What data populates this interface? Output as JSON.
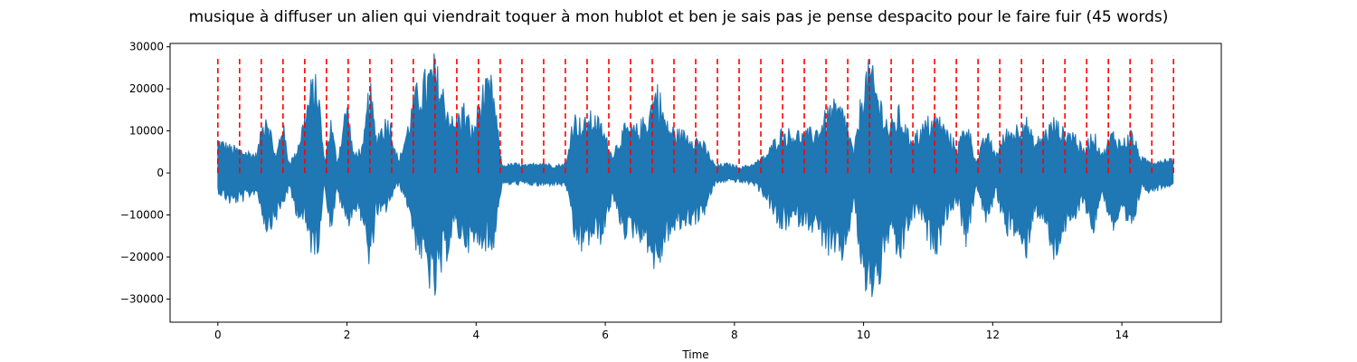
{
  "chart_data": {
    "type": "line",
    "title": "musique à diffuser un alien qui viendrait toquer à mon hublot et ben je sais pas je pense despacito pour le faire fuir (45 words)",
    "xlabel": "Time",
    "ylabel": "",
    "xlim": [
      -0.74,
      15.54
    ],
    "ylim": [
      -35500,
      30800
    ],
    "xticks": [
      0,
      2,
      4,
      6,
      8,
      10,
      12,
      14
    ],
    "xtick_labels": [
      "0",
      "2",
      "4",
      "6",
      "8",
      "10",
      "12",
      "14"
    ],
    "yticks": [
      -30000,
      -20000,
      -10000,
      0,
      10000,
      20000,
      30000
    ],
    "ytick_labels": [
      "−30000",
      "−20000",
      "−10000",
      "0",
      "10000",
      "20000",
      "30000"
    ],
    "grid": false,
    "legend": "none",
    "series": [
      {
        "color": "#1f77b4",
        "style": "filled-waveform",
        "x": [
          0.0,
          0.2,
          0.4,
          0.6,
          0.75,
          0.9,
          1.0,
          1.1,
          1.2,
          1.3,
          1.45,
          1.55,
          1.65,
          1.75,
          1.85,
          2.0,
          2.1,
          2.25,
          2.35,
          2.45,
          2.55,
          2.65,
          2.8,
          2.95,
          3.05,
          3.2,
          3.35,
          3.5,
          3.65,
          3.8,
          3.95,
          4.1,
          4.25,
          4.4,
          4.6,
          4.8,
          5.0,
          5.2,
          5.4,
          5.5,
          5.65,
          5.8,
          5.95,
          6.1,
          6.3,
          6.5,
          6.65,
          6.8,
          6.95,
          7.1,
          7.3,
          7.5,
          7.7,
          7.9,
          8.1,
          8.3,
          8.5,
          8.7,
          8.9,
          9.1,
          9.3,
          9.5,
          9.7,
          9.85,
          10.0,
          10.1,
          10.25,
          10.4,
          10.55,
          10.7,
          10.85,
          11.0,
          11.15,
          11.3,
          11.45,
          11.6,
          11.75,
          11.9,
          12.05,
          12.2,
          12.35,
          12.5,
          12.65,
          12.8,
          12.95,
          13.1,
          13.25,
          13.4,
          13.55,
          13.7,
          13.85,
          14.0,
          14.15,
          14.3,
          14.45,
          14.6,
          14.8
        ],
        "upper": [
          9000,
          7000,
          6000,
          5000,
          17500,
          4000,
          14000,
          3000,
          5000,
          12000,
          23500,
          24000,
          3000,
          14000,
          3000,
          19500,
          5000,
          7000,
          24000,
          10000,
          13000,
          15000,
          3000,
          13000,
          21000,
          25000,
          29000,
          21000,
          13000,
          18000,
          11500,
          22000,
          24000,
          2000,
          2500,
          2000,
          3000,
          2000,
          2500,
          15500,
          13000,
          15500,
          12500,
          5000,
          12000,
          12000,
          15000,
          23500,
          13000,
          11000,
          10500,
          8500,
          2000,
          2500,
          1500,
          2500,
          5000,
          11000,
          11000,
          10500,
          12000,
          18000,
          16500,
          5000,
          25000,
          28000,
          20000,
          12000,
          16500,
          10000,
          11000,
          14000,
          15000,
          11000,
          7000,
          14000,
          3000,
          11000,
          5000,
          11000,
          12000,
          15000,
          8000,
          11000,
          14000,
          11000,
          11000,
          6000,
          11000,
          5000,
          11000,
          8000,
          11000,
          4000,
          3000,
          3500,
          4000
        ],
        "lower": [
          -5000,
          -8000,
          -7000,
          -5000,
          -15000,
          -12000,
          -9000,
          -4000,
          -10000,
          -12000,
          -20000,
          -20000,
          -3000,
          -15000,
          -5000,
          -14000,
          -10000,
          -12000,
          -27000,
          -10000,
          -12000,
          -8000,
          -3000,
          -9000,
          -18000,
          -24000,
          -32500,
          -24000,
          -15000,
          -18000,
          -20000,
          -18000,
          -21000,
          -3000,
          -3000,
          -3000,
          -3500,
          -3000,
          -3500,
          -17000,
          -20000,
          -17000,
          -17500,
          -7000,
          -16000,
          -16000,
          -19000,
          -26000,
          -17000,
          -15000,
          -13000,
          -12000,
          -3000,
          -2000,
          -2500,
          -3000,
          -7000,
          -15000,
          -13000,
          -13000,
          -16000,
          -22000,
          -22000,
          -8000,
          -30000,
          -31500,
          -28000,
          -16000,
          -24000,
          -14000,
          -10000,
          -18000,
          -20000,
          -11000,
          -8000,
          -19000,
          -3000,
          -14000,
          -5000,
          -15000,
          -16000,
          -23000,
          -10000,
          -13000,
          -23000,
          -15000,
          -14000,
          -7000,
          -16000,
          -5000,
          -15000,
          -12000,
          -16000,
          -4000,
          -5000,
          -4000,
          -3000
        ]
      }
    ],
    "word_markers": {
      "color": "#ff0000",
      "style": "dashed",
      "ymin": 0,
      "ymax": 28000,
      "x": [
        0.0,
        0.3364,
        0.6727,
        1.0091,
        1.3455,
        1.6818,
        2.0182,
        2.3545,
        2.6909,
        3.0273,
        3.3636,
        3.7,
        4.0364,
        4.3727,
        4.7091,
        5.0455,
        5.3818,
        5.7182,
        6.0545,
        6.3909,
        6.7273,
        7.0636,
        7.4,
        7.7364,
        8.0727,
        8.4091,
        8.7455,
        9.0818,
        9.4182,
        9.7545,
        10.0909,
        10.4273,
        10.7636,
        11.1,
        11.4364,
        11.7727,
        12.1091,
        12.4455,
        12.7818,
        13.1182,
        13.4545,
        13.7909,
        14.1273,
        14.4636,
        14.8
      ]
    }
  }
}
